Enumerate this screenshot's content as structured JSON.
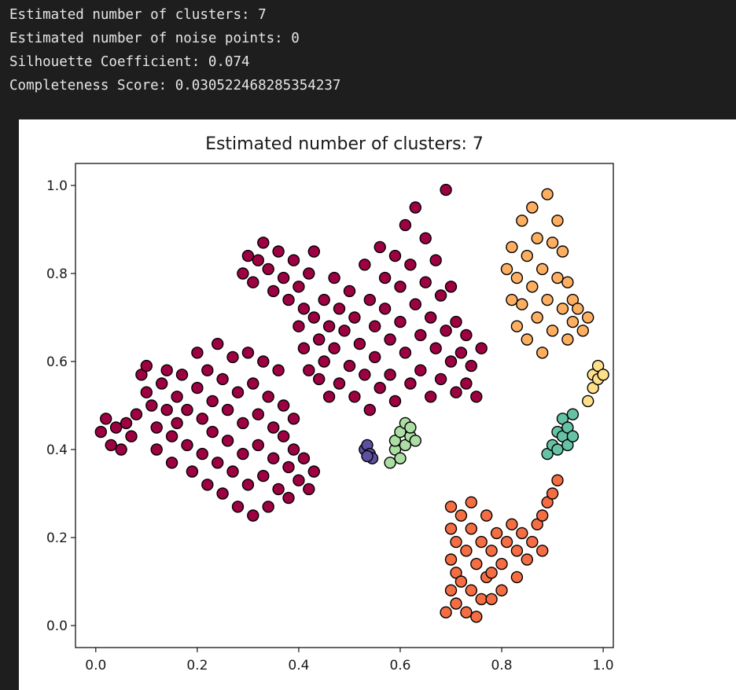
{
  "console_output": {
    "lines": [
      "Estimated number of clusters: 7",
      "Estimated number of noise points: 0",
      "Silhouette Coefficient: 0.074",
      "Completeness Score: 0.030522468285354237"
    ]
  },
  "chart_data": {
    "type": "scatter",
    "title": "Estimated number of clusters: 7",
    "xlabel": "",
    "ylabel": "",
    "xlim": [
      -0.04,
      1.02
    ],
    "ylim": [
      -0.05,
      1.05
    ],
    "xticks": [
      "0.0",
      "0.2",
      "0.4",
      "0.6",
      "0.8",
      "1.0"
    ],
    "yticks": [
      "0.0",
      "0.2",
      "0.4",
      "0.6",
      "0.8",
      "1.0"
    ],
    "grid": false,
    "legend": "none",
    "marker_edge_color": "#000000",
    "series": [
      {
        "color": "#9e0142",
        "points": [
          [
            0.01,
            0.44
          ],
          [
            0.02,
            0.47
          ],
          [
            0.03,
            0.41
          ],
          [
            0.04,
            0.45
          ],
          [
            0.05,
            0.4
          ],
          [
            0.06,
            0.46
          ],
          [
            0.07,
            0.43
          ],
          [
            0.08,
            0.48
          ],
          [
            0.09,
            0.57
          ],
          [
            0.1,
            0.59
          ],
          [
            0.1,
            0.53
          ],
          [
            0.11,
            0.5
          ],
          [
            0.12,
            0.45
          ],
          [
            0.12,
            0.4
          ],
          [
            0.13,
            0.55
          ],
          [
            0.14,
            0.49
          ],
          [
            0.14,
            0.58
          ],
          [
            0.15,
            0.43
          ],
          [
            0.15,
            0.37
          ],
          [
            0.16,
            0.52
          ],
          [
            0.16,
            0.46
          ],
          [
            0.17,
            0.57
          ],
          [
            0.18,
            0.49
          ],
          [
            0.18,
            0.41
          ],
          [
            0.19,
            0.35
          ],
          [
            0.2,
            0.62
          ],
          [
            0.2,
            0.54
          ],
          [
            0.21,
            0.47
          ],
          [
            0.21,
            0.39
          ],
          [
            0.22,
            0.32
          ],
          [
            0.22,
            0.58
          ],
          [
            0.23,
            0.51
          ],
          [
            0.23,
            0.44
          ],
          [
            0.24,
            0.64
          ],
          [
            0.24,
            0.37
          ],
          [
            0.25,
            0.3
          ],
          [
            0.25,
            0.56
          ],
          [
            0.26,
            0.49
          ],
          [
            0.26,
            0.42
          ],
          [
            0.27,
            0.61
          ],
          [
            0.27,
            0.35
          ],
          [
            0.28,
            0.27
          ],
          [
            0.28,
            0.53
          ],
          [
            0.29,
            0.46
          ],
          [
            0.29,
            0.39
          ],
          [
            0.3,
            0.62
          ],
          [
            0.3,
            0.32
          ],
          [
            0.31,
            0.25
          ],
          [
            0.31,
            0.55
          ],
          [
            0.32,
            0.48
          ],
          [
            0.32,
            0.41
          ],
          [
            0.33,
            0.6
          ],
          [
            0.33,
            0.34
          ],
          [
            0.34,
            0.27
          ],
          [
            0.34,
            0.52
          ],
          [
            0.35,
            0.45
          ],
          [
            0.35,
            0.38
          ],
          [
            0.36,
            0.58
          ],
          [
            0.36,
            0.31
          ],
          [
            0.37,
            0.5
          ],
          [
            0.37,
            0.43
          ],
          [
            0.38,
            0.36
          ],
          [
            0.38,
            0.29
          ],
          [
            0.39,
            0.47
          ],
          [
            0.39,
            0.4
          ],
          [
            0.4,
            0.33
          ],
          [
            0.41,
            0.38
          ],
          [
            0.42,
            0.31
          ],
          [
            0.43,
            0.35
          ],
          [
            0.29,
            0.8
          ],
          [
            0.3,
            0.84
          ],
          [
            0.31,
            0.78
          ],
          [
            0.32,
            0.83
          ],
          [
            0.33,
            0.87
          ],
          [
            0.34,
            0.81
          ],
          [
            0.35,
            0.76
          ],
          [
            0.36,
            0.85
          ],
          [
            0.37,
            0.79
          ],
          [
            0.38,
            0.74
          ],
          [
            0.39,
            0.83
          ],
          [
            0.4,
            0.77
          ],
          [
            0.41,
            0.72
          ],
          [
            0.42,
            0.8
          ],
          [
            0.43,
            0.85
          ],
          [
            0.4,
            0.68
          ],
          [
            0.41,
            0.63
          ],
          [
            0.42,
            0.58
          ],
          [
            0.43,
            0.7
          ],
          [
            0.44,
            0.65
          ],
          [
            0.44,
            0.56
          ],
          [
            0.45,
            0.74
          ],
          [
            0.45,
            0.6
          ],
          [
            0.46,
            0.52
          ],
          [
            0.46,
            0.68
          ],
          [
            0.47,
            0.79
          ],
          [
            0.47,
            0.63
          ],
          [
            0.48,
            0.55
          ],
          [
            0.48,
            0.72
          ],
          [
            0.49,
            0.67
          ],
          [
            0.5,
            0.59
          ],
          [
            0.5,
            0.76
          ],
          [
            0.51,
            0.52
          ],
          [
            0.51,
            0.7
          ],
          [
            0.52,
            0.64
          ],
          [
            0.53,
            0.82
          ],
          [
            0.53,
            0.57
          ],
          [
            0.54,
            0.74
          ],
          [
            0.54,
            0.49
          ],
          [
            0.55,
            0.68
          ],
          [
            0.55,
            0.61
          ],
          [
            0.56,
            0.86
          ],
          [
            0.56,
            0.54
          ],
          [
            0.57,
            0.79
          ],
          [
            0.57,
            0.72
          ],
          [
            0.58,
            0.65
          ],
          [
            0.58,
            0.57
          ],
          [
            0.59,
            0.84
          ],
          [
            0.59,
            0.51
          ],
          [
            0.6,
            0.77
          ],
          [
            0.6,
            0.69
          ],
          [
            0.61,
            0.62
          ],
          [
            0.61,
            0.91
          ],
          [
            0.62,
            0.55
          ],
          [
            0.62,
            0.82
          ],
          [
            0.63,
            0.73
          ],
          [
            0.63,
            0.95
          ],
          [
            0.64,
            0.66
          ],
          [
            0.64,
            0.58
          ],
          [
            0.65,
            0.88
          ],
          [
            0.65,
            0.78
          ],
          [
            0.66,
            0.7
          ],
          [
            0.66,
            0.52
          ],
          [
            0.67,
            0.63
          ],
          [
            0.67,
            0.83
          ],
          [
            0.68,
            0.75
          ],
          [
            0.68,
            0.56
          ],
          [
            0.69,
            0.99
          ],
          [
            0.69,
            0.67
          ],
          [
            0.7,
            0.6
          ],
          [
            0.7,
            0.77
          ],
          [
            0.71,
            0.53
          ],
          [
            0.71,
            0.69
          ],
          [
            0.72,
            0.62
          ],
          [
            0.73,
            0.55
          ],
          [
            0.73,
            0.66
          ],
          [
            0.74,
            0.59
          ],
          [
            0.75,
            0.52
          ],
          [
            0.76,
            0.63
          ]
        ]
      },
      {
        "color": "#5e4fa2",
        "points": [
          [
            0.53,
            0.4
          ],
          [
            0.535,
            0.41
          ],
          [
            0.54,
            0.39
          ],
          [
            0.545,
            0.38
          ],
          [
            0.535,
            0.385
          ]
        ]
      },
      {
        "color": "#abdda4",
        "points": [
          [
            0.58,
            0.37
          ],
          [
            0.59,
            0.4
          ],
          [
            0.59,
            0.42
          ],
          [
            0.6,
            0.38
          ],
          [
            0.6,
            0.44
          ],
          [
            0.61,
            0.41
          ],
          [
            0.61,
            0.46
          ],
          [
            0.62,
            0.43
          ],
          [
            0.62,
            0.45
          ],
          [
            0.63,
            0.42
          ]
        ]
      },
      {
        "color": "#f46d43",
        "points": [
          [
            0.69,
            0.03
          ],
          [
            0.7,
            0.08
          ],
          [
            0.7,
            0.15
          ],
          [
            0.7,
            0.22
          ],
          [
            0.7,
            0.27
          ],
          [
            0.71,
            0.05
          ],
          [
            0.71,
            0.12
          ],
          [
            0.71,
            0.19
          ],
          [
            0.72,
            0.25
          ],
          [
            0.72,
            0.1
          ],
          [
            0.73,
            0.03
          ],
          [
            0.73,
            0.17
          ],
          [
            0.74,
            0.28
          ],
          [
            0.74,
            0.08
          ],
          [
            0.74,
            0.22
          ],
          [
            0.75,
            0.14
          ],
          [
            0.75,
            0.02
          ],
          [
            0.76,
            0.19
          ],
          [
            0.76,
            0.06
          ],
          [
            0.77,
            0.25
          ],
          [
            0.77,
            0.11
          ],
          [
            0.78,
            0.17
          ],
          [
            0.78,
            0.06
          ],
          [
            0.79,
            0.21
          ],
          [
            0.8,
            0.14
          ],
          [
            0.8,
            0.08
          ],
          [
            0.81,
            0.19
          ],
          [
            0.82,
            0.23
          ],
          [
            0.83,
            0.17
          ],
          [
            0.84,
            0.21
          ],
          [
            0.85,
            0.15
          ],
          [
            0.86,
            0.19
          ],
          [
            0.87,
            0.23
          ],
          [
            0.88,
            0.25
          ],
          [
            0.88,
            0.17
          ],
          [
            0.89,
            0.28
          ],
          [
            0.9,
            0.3
          ],
          [
            0.91,
            0.33
          ],
          [
            0.83,
            0.11
          ],
          [
            0.78,
            0.12
          ]
        ]
      },
      {
        "color": "#fdae61",
        "points": [
          [
            0.81,
            0.81
          ],
          [
            0.82,
            0.74
          ],
          [
            0.82,
            0.86
          ],
          [
            0.83,
            0.68
          ],
          [
            0.83,
            0.79
          ],
          [
            0.84,
            0.92
          ],
          [
            0.84,
            0.73
          ],
          [
            0.85,
            0.84
          ],
          [
            0.85,
            0.65
          ],
          [
            0.86,
            0.95
          ],
          [
            0.86,
            0.77
          ],
          [
            0.87,
            0.7
          ],
          [
            0.87,
            0.88
          ],
          [
            0.88,
            0.81
          ],
          [
            0.88,
            0.62
          ],
          [
            0.89,
            0.98
          ],
          [
            0.89,
            0.74
          ],
          [
            0.9,
            0.87
          ],
          [
            0.9,
            0.67
          ],
          [
            0.91,
            0.79
          ],
          [
            0.91,
            0.92
          ],
          [
            0.92,
            0.72
          ],
          [
            0.92,
            0.85
          ],
          [
            0.93,
            0.78
          ],
          [
            0.93,
            0.65
          ],
          [
            0.94,
            0.74
          ],
          [
            0.94,
            0.69
          ],
          [
            0.95,
            0.72
          ],
          [
            0.96,
            0.67
          ],
          [
            0.97,
            0.7
          ]
        ]
      },
      {
        "color": "#66c2a5",
        "points": [
          [
            0.89,
            0.39
          ],
          [
            0.9,
            0.41
          ],
          [
            0.91,
            0.44
          ],
          [
            0.91,
            0.4
          ],
          [
            0.92,
            0.47
          ],
          [
            0.92,
            0.43
          ],
          [
            0.93,
            0.45
          ],
          [
            0.93,
            0.41
          ],
          [
            0.94,
            0.48
          ],
          [
            0.94,
            0.43
          ]
        ]
      },
      {
        "color": "#fee08b",
        "points": [
          [
            0.97,
            0.51
          ],
          [
            0.98,
            0.54
          ],
          [
            0.98,
            0.57
          ],
          [
            0.99,
            0.59
          ],
          [
            0.99,
            0.56
          ],
          [
            1.0,
            0.57
          ]
        ]
      }
    ]
  }
}
